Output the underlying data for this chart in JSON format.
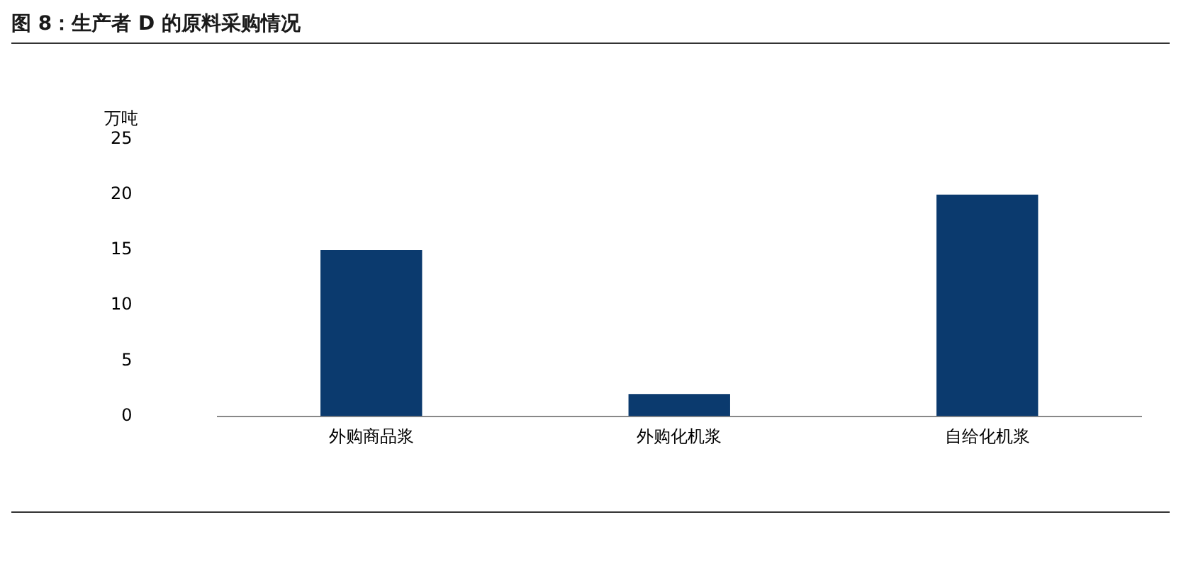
{
  "chart_data": {
    "type": "bar",
    "title": "图 8：生产者 D 的原料采购情况",
    "ylabel": "万吨",
    "categories": [
      "外购商品浆",
      "外购化机浆",
      "自给化机浆"
    ],
    "values": [
      15,
      2,
      20
    ],
    "color": "#0b3a6e",
    "ylim": [
      0,
      25
    ],
    "yticks": [
      0,
      5,
      10,
      15,
      20,
      25
    ],
    "grid": false,
    "legend": false
  }
}
